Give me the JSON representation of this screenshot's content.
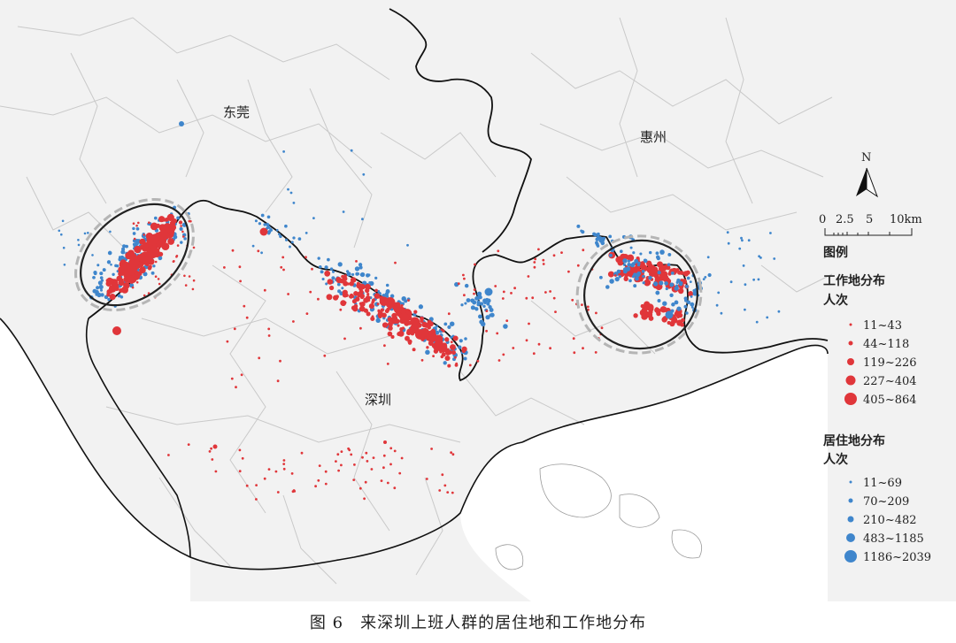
{
  "places": {
    "dongguan": "东莞",
    "huizhou": "惠州",
    "shenzhen": "深圳"
  },
  "north_arrow": {
    "label": "N"
  },
  "scale_bar": {
    "ticks": [
      "0",
      "2.5",
      "5",
      "10km"
    ]
  },
  "legend": {
    "title": "图例",
    "work": {
      "title_line1": "工作地分布",
      "title_line2": "人次",
      "color": "#e0363a",
      "classes": [
        "11~43",
        "44~118",
        "119~226",
        "227~404",
        "405~864"
      ]
    },
    "home": {
      "title_line1": "居住地分布",
      "title_line2": "人次",
      "color": "#3f86cc",
      "classes": [
        "11~69",
        "70~209",
        "210~482",
        "483~1185",
        "1186~2039"
      ]
    }
  },
  "colors": {
    "land": "#f2f2f2",
    "sea": "#ffffff",
    "district_line": "#c9c9c9",
    "city_boundary": "#111111",
    "highlight_ellipse": "#222222",
    "highlight_dash": "#b5b5b5"
  },
  "caption": "图 6　来深圳上班人群的居住地和工作地分布"
}
